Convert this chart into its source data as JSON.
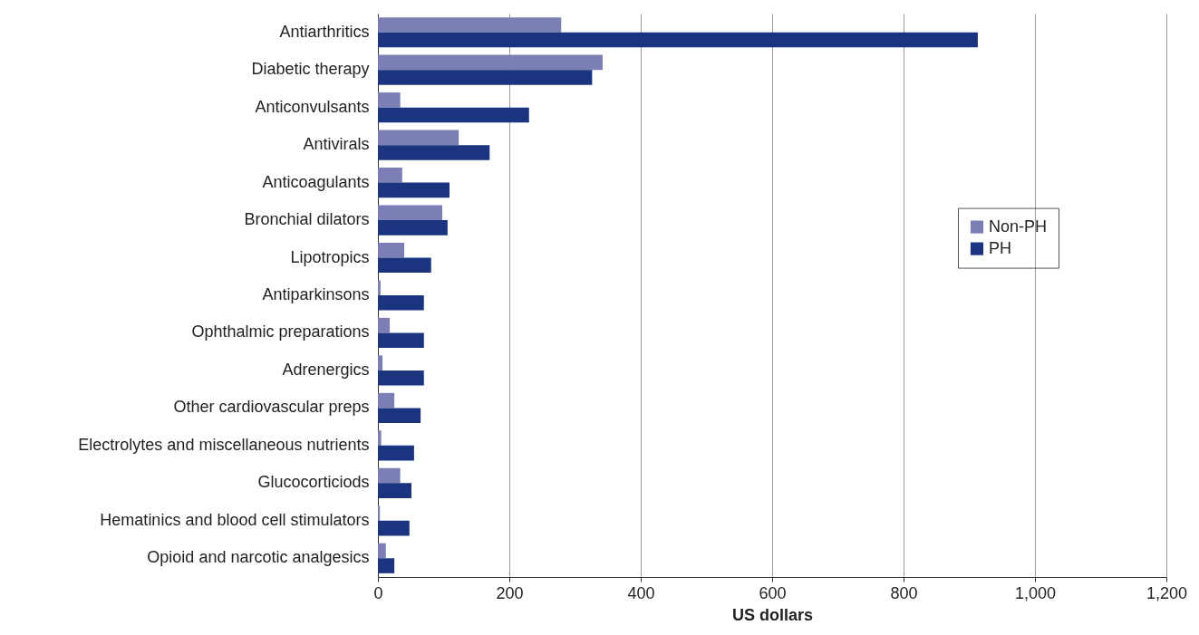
{
  "chart_data": {
    "type": "bar",
    "orientation": "horizontal",
    "xlabel": "US dollars",
    "categories": [
      "Antiarthritics",
      "Diabetic therapy",
      "Anticonvulsants",
      "Antivirals",
      "Anticoagulants",
      "Bronchial dilators",
      "Lipotropics",
      "Antiparkinsons",
      "Ophthalmic preparations",
      "Adrenergics",
      "Other cardiovascular preps",
      "Electrolytes and miscellaneous nutrients",
      "Glucocorticiods",
      "Hematinics and blood cell stimulators",
      "Opioid and narcotic analgesics"
    ],
    "series": [
      {
        "name": "Non-PH",
        "color": "#7b7fb5",
        "values": [
          279,
          342,
          34,
          123,
          37,
          98,
          40,
          4,
          18,
          7,
          25,
          5,
          34,
          3,
          12
        ]
      },
      {
        "name": "PH",
        "color": "#1a3480",
        "values": [
          913,
          326,
          230,
          170,
          109,
          106,
          81,
          70,
          70,
          70,
          65,
          55,
          51,
          48,
          25
        ]
      }
    ],
    "xlim": [
      0,
      1200
    ],
    "xticks": [
      0,
      200,
      400,
      600,
      800,
      {
        "value": 1000,
        "label": "1,000"
      },
      {
        "value": 1200,
        "label": "1,200"
      }
    ],
    "grid": "x",
    "legend": "right"
  }
}
